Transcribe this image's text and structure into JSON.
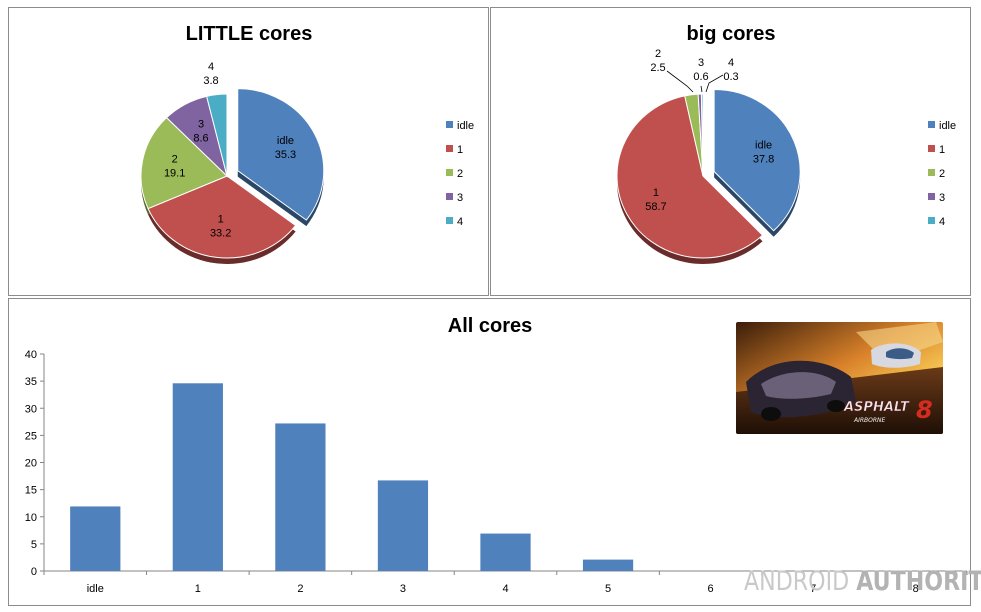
{
  "chart_data": [
    {
      "type": "pie",
      "title": "LITTLE cores",
      "categories": [
        "idle",
        "1",
        "2",
        "3",
        "4"
      ],
      "values": [
        35.3,
        33.2,
        19.1,
        8.6,
        3.8
      ],
      "colors": [
        "#4f81bd",
        "#c0504d",
        "#9bbb59",
        "#8064a2",
        "#4bacc6"
      ],
      "exploded": "idle",
      "legend": "right"
    },
    {
      "type": "pie",
      "title": "big cores",
      "categories": [
        "idle",
        "1",
        "2",
        "3",
        "4"
      ],
      "values": [
        37.8,
        58.7,
        2.5,
        0.6,
        0.3
      ],
      "colors": [
        "#4f81bd",
        "#c0504d",
        "#9bbb59",
        "#8064a2",
        "#4bacc6"
      ],
      "exploded": "idle",
      "legend": "right"
    },
    {
      "type": "bar",
      "title": "All cores",
      "categories": [
        "idle",
        "1",
        "2",
        "3",
        "4",
        "5",
        "6",
        "7",
        "8"
      ],
      "values": [
        11.9,
        34.6,
        27.2,
        16.7,
        6.9,
        2.1,
        0,
        0,
        0
      ],
      "ylim": [
        0,
        40
      ],
      "yticks": [
        "0",
        "5",
        "10",
        "15",
        "20",
        "25",
        "30",
        "35",
        "40"
      ],
      "color": "#4f81bd",
      "grid": false
    }
  ],
  "image": {
    "icon": "asphalt-8-game-image",
    "text": "ASPHALT 8 AIRBORNE"
  },
  "watermark": {
    "part1": "ANDROID",
    "part2": "AUTHORITY"
  }
}
